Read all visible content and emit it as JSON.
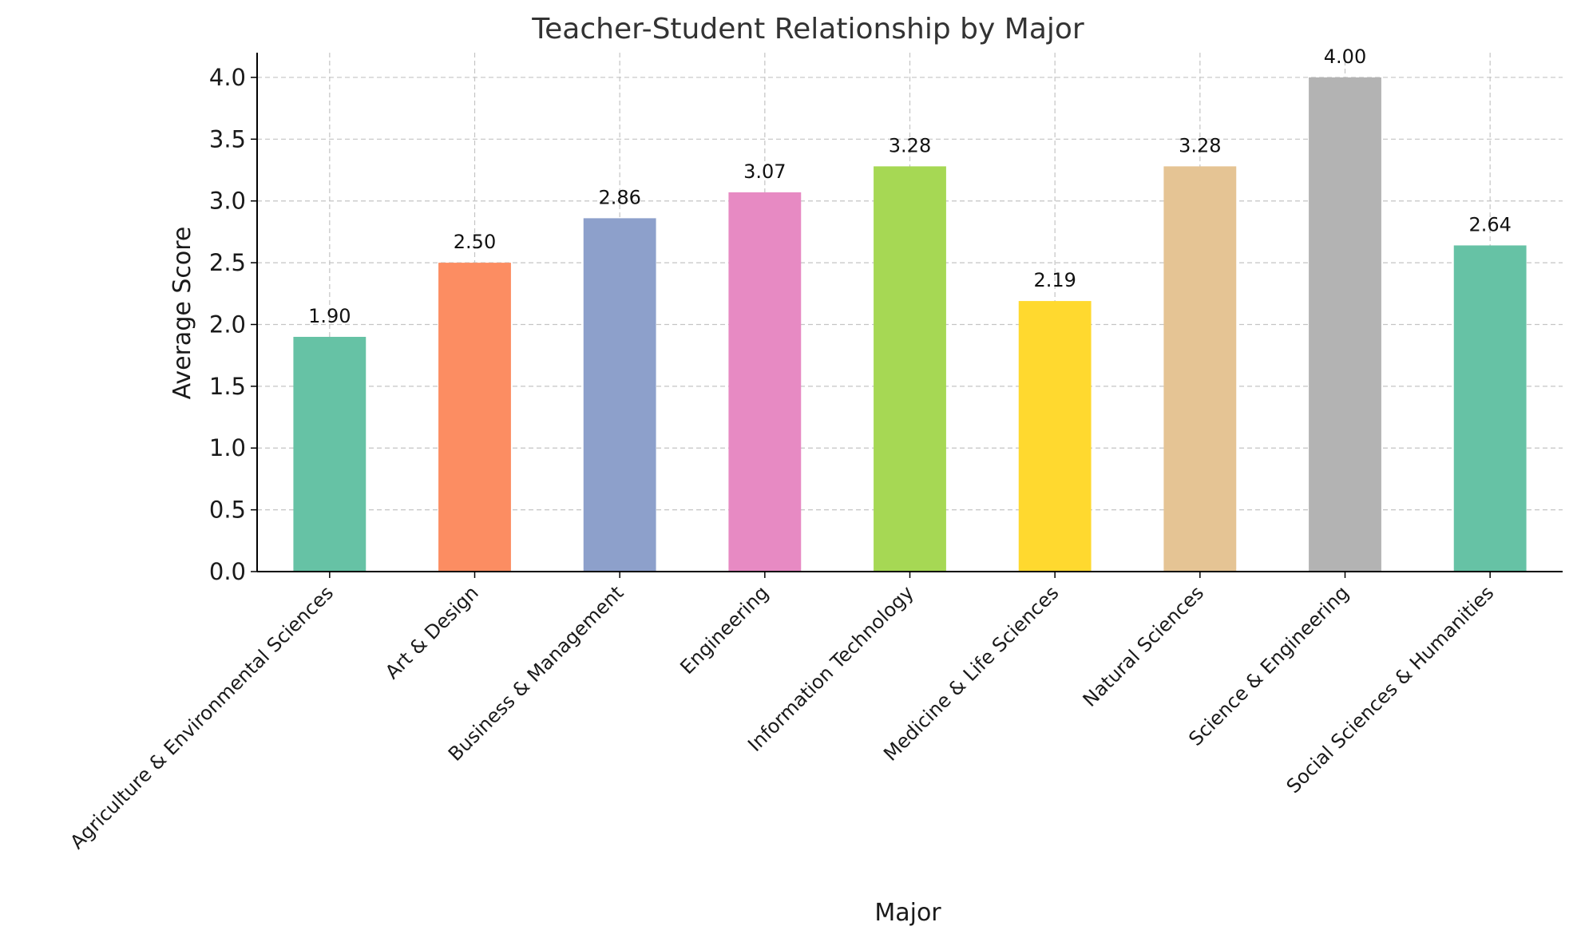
{
  "chart_data": {
    "type": "bar",
    "title": "Teacher-Student Relationship by Major",
    "xlabel": "Major",
    "ylabel": "Average Score",
    "categories": [
      "Agriculture & Environmental Sciences",
      "Art & Design",
      "Business & Management",
      "Engineering",
      "Information Technology",
      "Medicine & Life Sciences",
      "Natural Sciences",
      "Science & Engineering",
      "Social Sciences & Humanities"
    ],
    "values": [
      1.9,
      2.5,
      2.86,
      3.07,
      3.28,
      2.19,
      3.28,
      4.0,
      2.64
    ],
    "value_labels": [
      "1.90",
      "2.50",
      "2.86",
      "3.07",
      "3.28",
      "2.19",
      "3.28",
      "4.00",
      "2.64"
    ],
    "ylim": [
      0,
      4.2
    ],
    "yticks": [
      0.0,
      0.5,
      1.0,
      1.5,
      2.0,
      2.5,
      3.0,
      3.5,
      4.0
    ],
    "ytick_labels": [
      "0.0",
      "0.5",
      "1.0",
      "1.5",
      "2.0",
      "2.5",
      "3.0",
      "3.5",
      "4.0"
    ],
    "grid": true,
    "colors": [
      "#66c2a5",
      "#fc8d62",
      "#8da0cb",
      "#e78ac3",
      "#a6d854",
      "#ffd92f",
      "#e5c494",
      "#b3b3b3",
      "#66c2a5"
    ]
  }
}
